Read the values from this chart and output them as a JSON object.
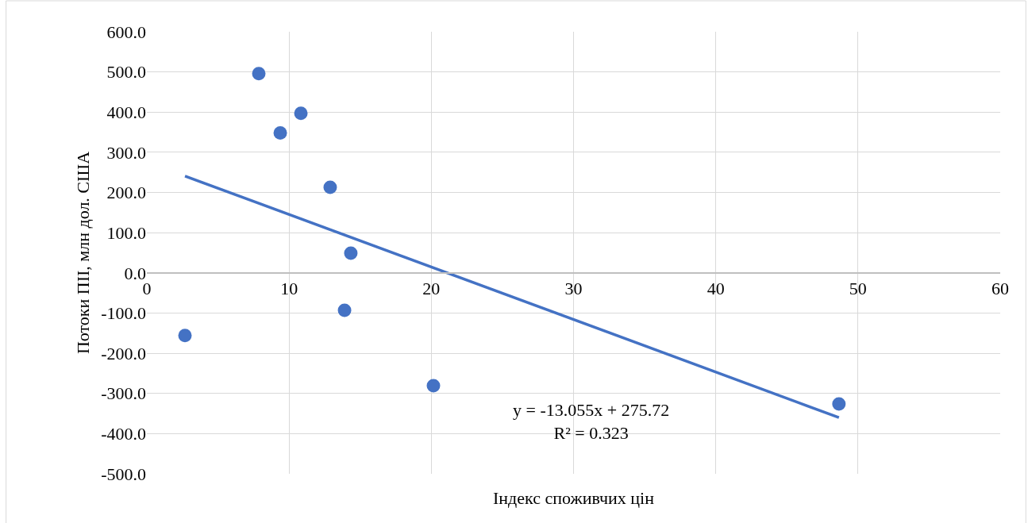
{
  "chart_data": {
    "type": "scatter",
    "xlabel": "Індекс споживчих цін",
    "ylabel": "Потоки ПІІ, млн дол. США",
    "x": [
      2.68,
      7.87,
      9.38,
      10.83,
      12.89,
      14.34,
      13.9,
      20.15,
      48.66
    ],
    "series": [
      {
        "color": "#4472c4",
        "marker": "circle",
        "values": [
          -156,
          496,
          348,
          397,
          213,
          49,
          -93,
          -281,
          -326
        ]
      },
      {
        "type": "line",
        "color": "#4472c4",
        "x": [
          2.68,
          48.66
        ],
        "values": [
          241,
          -360
        ],
        "line_style": "solid"
      }
    ],
    "annotations": [
      "y = -13.055x + 275.72",
      "R² = 0.323"
    ],
    "xlim": [
      0,
      60
    ],
    "xticks": [
      0,
      10,
      20,
      30,
      40,
      50,
      60
    ],
    "ylim": [
      -500,
      600
    ],
    "yticks": [
      {
        "value": 600,
        "label": "600.0"
      },
      {
        "value": 500,
        "label": "500.0"
      },
      {
        "value": 400,
        "label": "400.0"
      },
      {
        "value": 300,
        "label": "300.0"
      },
      {
        "value": 200,
        "label": "200.0"
      },
      {
        "value": 100,
        "label": "100.0"
      },
      {
        "value": 0,
        "label": "0.0"
      },
      {
        "value": -100,
        "label": "-100.0"
      },
      {
        "value": -200,
        "label": "-200.0"
      },
      {
        "value": -300,
        "label": "-300.0"
      },
      {
        "value": -400,
        "label": "-400.0"
      },
      {
        "value": -500,
        "label": "-500.0"
      }
    ],
    "grid": true
  }
}
